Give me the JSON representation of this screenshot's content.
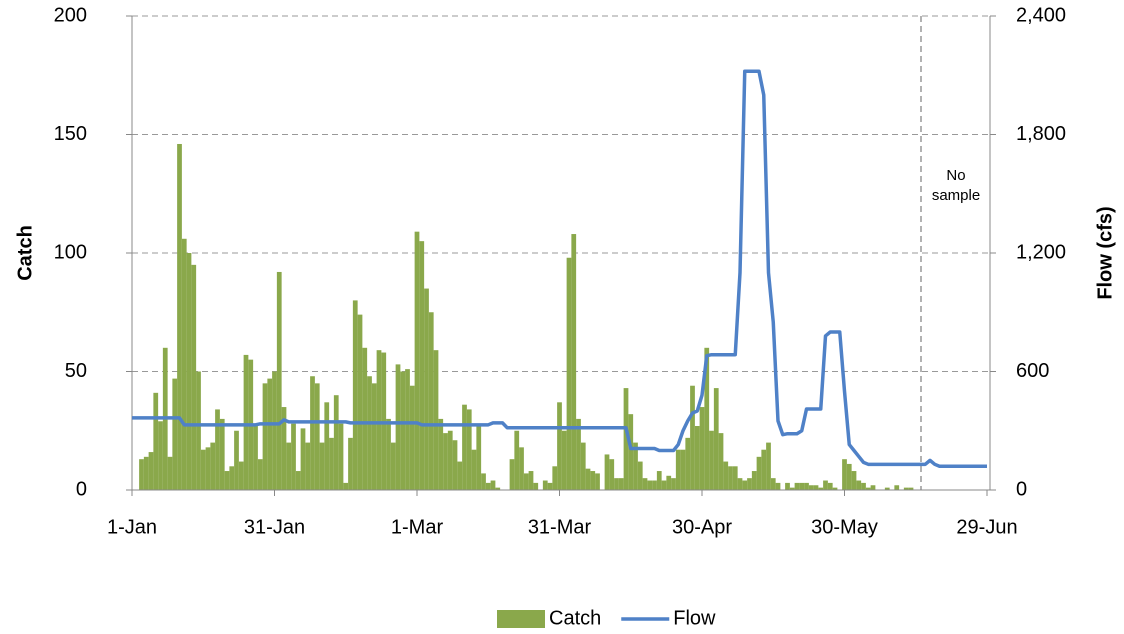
{
  "chart_data": {
    "type": "bar_line",
    "categories": [
      "1-Jan",
      null,
      null,
      null,
      null,
      null,
      null,
      null,
      null,
      null,
      null,
      null,
      null,
      null,
      null,
      null,
      null,
      null,
      null,
      null,
      null,
      null,
      null,
      null,
      null,
      null,
      null,
      null,
      null,
      null,
      "31-Jan",
      null,
      null,
      null,
      null,
      null,
      null,
      null,
      null,
      null,
      null,
      null,
      null,
      null,
      null,
      null,
      null,
      null,
      null,
      null,
      null,
      null,
      null,
      null,
      null,
      null,
      null,
      null,
      null,
      null,
      "1-Mar",
      null,
      null,
      null,
      null,
      null,
      null,
      null,
      null,
      null,
      null,
      null,
      null,
      null,
      null,
      null,
      null,
      null,
      null,
      null,
      null,
      null,
      null,
      null,
      null,
      null,
      null,
      null,
      null,
      null,
      "31-Mar",
      null,
      null,
      null,
      null,
      null,
      null,
      null,
      null,
      null,
      null,
      null,
      null,
      null,
      null,
      null,
      null,
      null,
      null,
      null,
      null,
      null,
      null,
      null,
      null,
      null,
      null,
      null,
      null,
      null,
      "30-Apr",
      null,
      null,
      null,
      null,
      null,
      null,
      null,
      null,
      null,
      null,
      null,
      null,
      null,
      null,
      null,
      null,
      null,
      null,
      null,
      null,
      null,
      null,
      null,
      null,
      null,
      null,
      null,
      null,
      null,
      "30-May",
      null,
      null,
      null,
      null,
      null,
      null,
      null,
      null,
      null,
      null,
      null,
      null,
      null,
      null,
      null,
      null,
      null,
      null,
      null,
      null,
      null,
      null,
      null,
      null,
      null,
      null,
      null,
      null,
      null,
      "29-Jun"
    ],
    "series": [
      {
        "name": "Catch",
        "color": "#8aa84b",
        "kind": "bar",
        "values": [
          0,
          0,
          13,
          14,
          16,
          41,
          29,
          60,
          14,
          47,
          146,
          106,
          100,
          95,
          50,
          17,
          18,
          20,
          34,
          30,
          8,
          10,
          25,
          12,
          57,
          55,
          28,
          13,
          45,
          47,
          50,
          92,
          35,
          20,
          28,
          8,
          26,
          20,
          48,
          45,
          20,
          37,
          22,
          40,
          28,
          3,
          22,
          80,
          74,
          60,
          48,
          45,
          59,
          58,
          30,
          20,
          53,
          50,
          51,
          44,
          109,
          105,
          85,
          75,
          59,
          30,
          24,
          25,
          21,
          12,
          36,
          34,
          17,
          28,
          7,
          3,
          4,
          1,
          0,
          0,
          13,
          25,
          18,
          7,
          8,
          3,
          0,
          4,
          3,
          10,
          37,
          25,
          98,
          108,
          30,
          20,
          9,
          8,
          7,
          0,
          15,
          13,
          5,
          5,
          43,
          32,
          20,
          12,
          5,
          4,
          4,
          8,
          4,
          6,
          5,
          17,
          17,
          22,
          44,
          27,
          35,
          60,
          25,
          43,
          24,
          12,
          10,
          10,
          5,
          4,
          5,
          8,
          14,
          17,
          20,
          5,
          3,
          0,
          3,
          1,
          3,
          3,
          3,
          2,
          2,
          1,
          4,
          3,
          1,
          0,
          13,
          11,
          8,
          4,
          3,
          1,
          2,
          0,
          0,
          1,
          0,
          2,
          0,
          1,
          1,
          0,
          0,
          null,
          null,
          null,
          null,
          null,
          null,
          null,
          null,
          null,
          null,
          null,
          null,
          null,
          null
        ]
      },
      {
        "name": "Flow",
        "color": "#4f81c7",
        "kind": "line",
        "axis": "y2",
        "values": [
          365,
          365,
          365,
          365,
          365,
          365,
          365,
          365,
          365,
          365,
          365,
          330,
          330,
          330,
          330,
          330,
          330,
          330,
          330,
          330,
          330,
          330,
          330,
          330,
          330,
          330,
          330,
          335,
          335,
          335,
          335,
          335,
          355,
          345,
          345,
          345,
          345,
          345,
          345,
          345,
          345,
          345,
          345,
          345,
          345,
          345,
          340,
          340,
          340,
          340,
          340,
          340,
          340,
          340,
          340,
          340,
          340,
          340,
          340,
          340,
          340,
          330,
          330,
          330,
          330,
          330,
          330,
          330,
          330,
          330,
          330,
          330,
          330,
          330,
          330,
          330,
          340,
          340,
          340,
          315,
          315,
          315,
          315,
          315,
          315,
          315,
          315,
          315,
          315,
          315,
          315,
          315,
          315,
          315,
          315,
          315,
          315,
          315,
          315,
          315,
          315,
          315,
          315,
          315,
          315,
          210,
          210,
          210,
          210,
          210,
          210,
          200,
          200,
          200,
          200,
          230,
          300,
          350,
          390,
          400,
          480,
          680,
          685,
          685,
          685,
          685,
          685,
          685,
          1100,
          2120,
          2120,
          2120,
          2120,
          2000,
          1100,
          850,
          350,
          280,
          285,
          285,
          285,
          300,
          410,
          410,
          410,
          410,
          780,
          800,
          800,
          800,
          500,
          230,
          200,
          170,
          140,
          130,
          130,
          130,
          130,
          130,
          130,
          130,
          130,
          130,
          130,
          130,
          130,
          130,
          150,
          130,
          120,
          120,
          120,
          120,
          120,
          120,
          120,
          120,
          120,
          120,
          120
        ]
      }
    ],
    "ylabel": "Catch",
    "y2label": "Flow (cfs)",
    "ylim": [
      0,
      200
    ],
    "yticks": [
      0,
      50,
      100,
      150,
      200
    ],
    "y2lim": [
      0,
      2400
    ],
    "y2ticks": [
      0,
      600,
      {
        "value": 1200,
        "label": "1,200"
      },
      {
        "value": 1800,
        "label": "1,800"
      },
      {
        "value": 2400,
        "label": "2,400"
      }
    ],
    "annotation": "No sample",
    "grid": true,
    "legend": "bottom"
  }
}
